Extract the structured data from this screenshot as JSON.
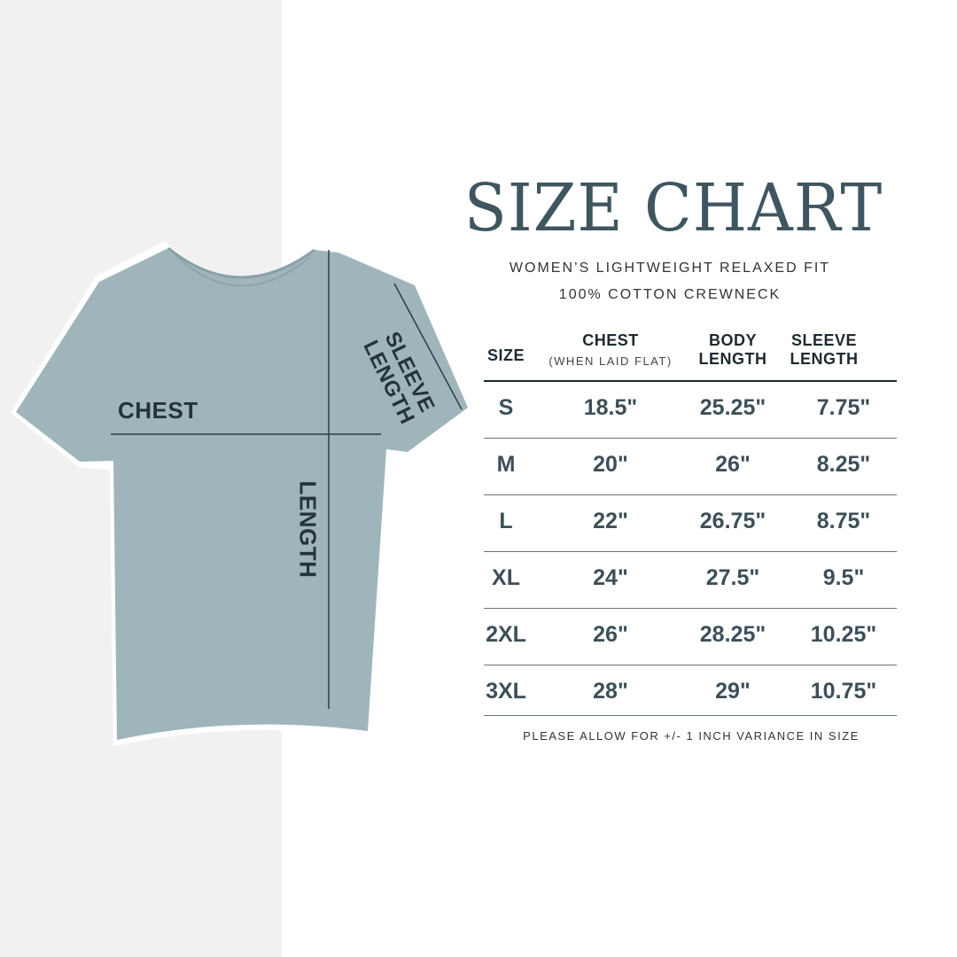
{
  "colors": {
    "shirt": "#9fb5bb",
    "title": "#3f5661",
    "text": "#3d4f59",
    "left_panel": "#f1f1f1"
  },
  "diagram": {
    "chest_label": "CHEST",
    "length_label": "LENGTH",
    "sleeve_label_1": "SLEEVE",
    "sleeve_label_2": "LENGTH"
  },
  "title": "SIZE CHART",
  "subtitle_1": "WOMEN’S LIGHTWEIGHT RELAXED FIT",
  "subtitle_2": "100% COTTON CREWNECK",
  "table": {
    "headers": {
      "size": "SIZE",
      "chest": "CHEST",
      "chest_note": "(WHEN LAID FLAT)",
      "body_1": "BODY",
      "body_2": "LENGTH",
      "sleeve_1": "SLEEVE",
      "sleeve_2": "LENGTH"
    },
    "rows": [
      [
        "S",
        "18.5\"",
        "25.25\"",
        "7.75\""
      ],
      [
        "M",
        "20\"",
        "26\"",
        "8.25\""
      ],
      [
        "L",
        "22\"",
        "26.75\"",
        "8.75\""
      ],
      [
        "XL",
        "24\"",
        "27.5\"",
        "9.5\""
      ],
      [
        "2XL",
        "26\"",
        "28.25\"",
        "10.25\""
      ],
      [
        "3XL",
        "28\"",
        "29\"",
        "10.75\""
      ]
    ]
  },
  "footnote": "PLEASE ALLOW FOR +/- 1 INCH VARIANCE IN SIZE"
}
